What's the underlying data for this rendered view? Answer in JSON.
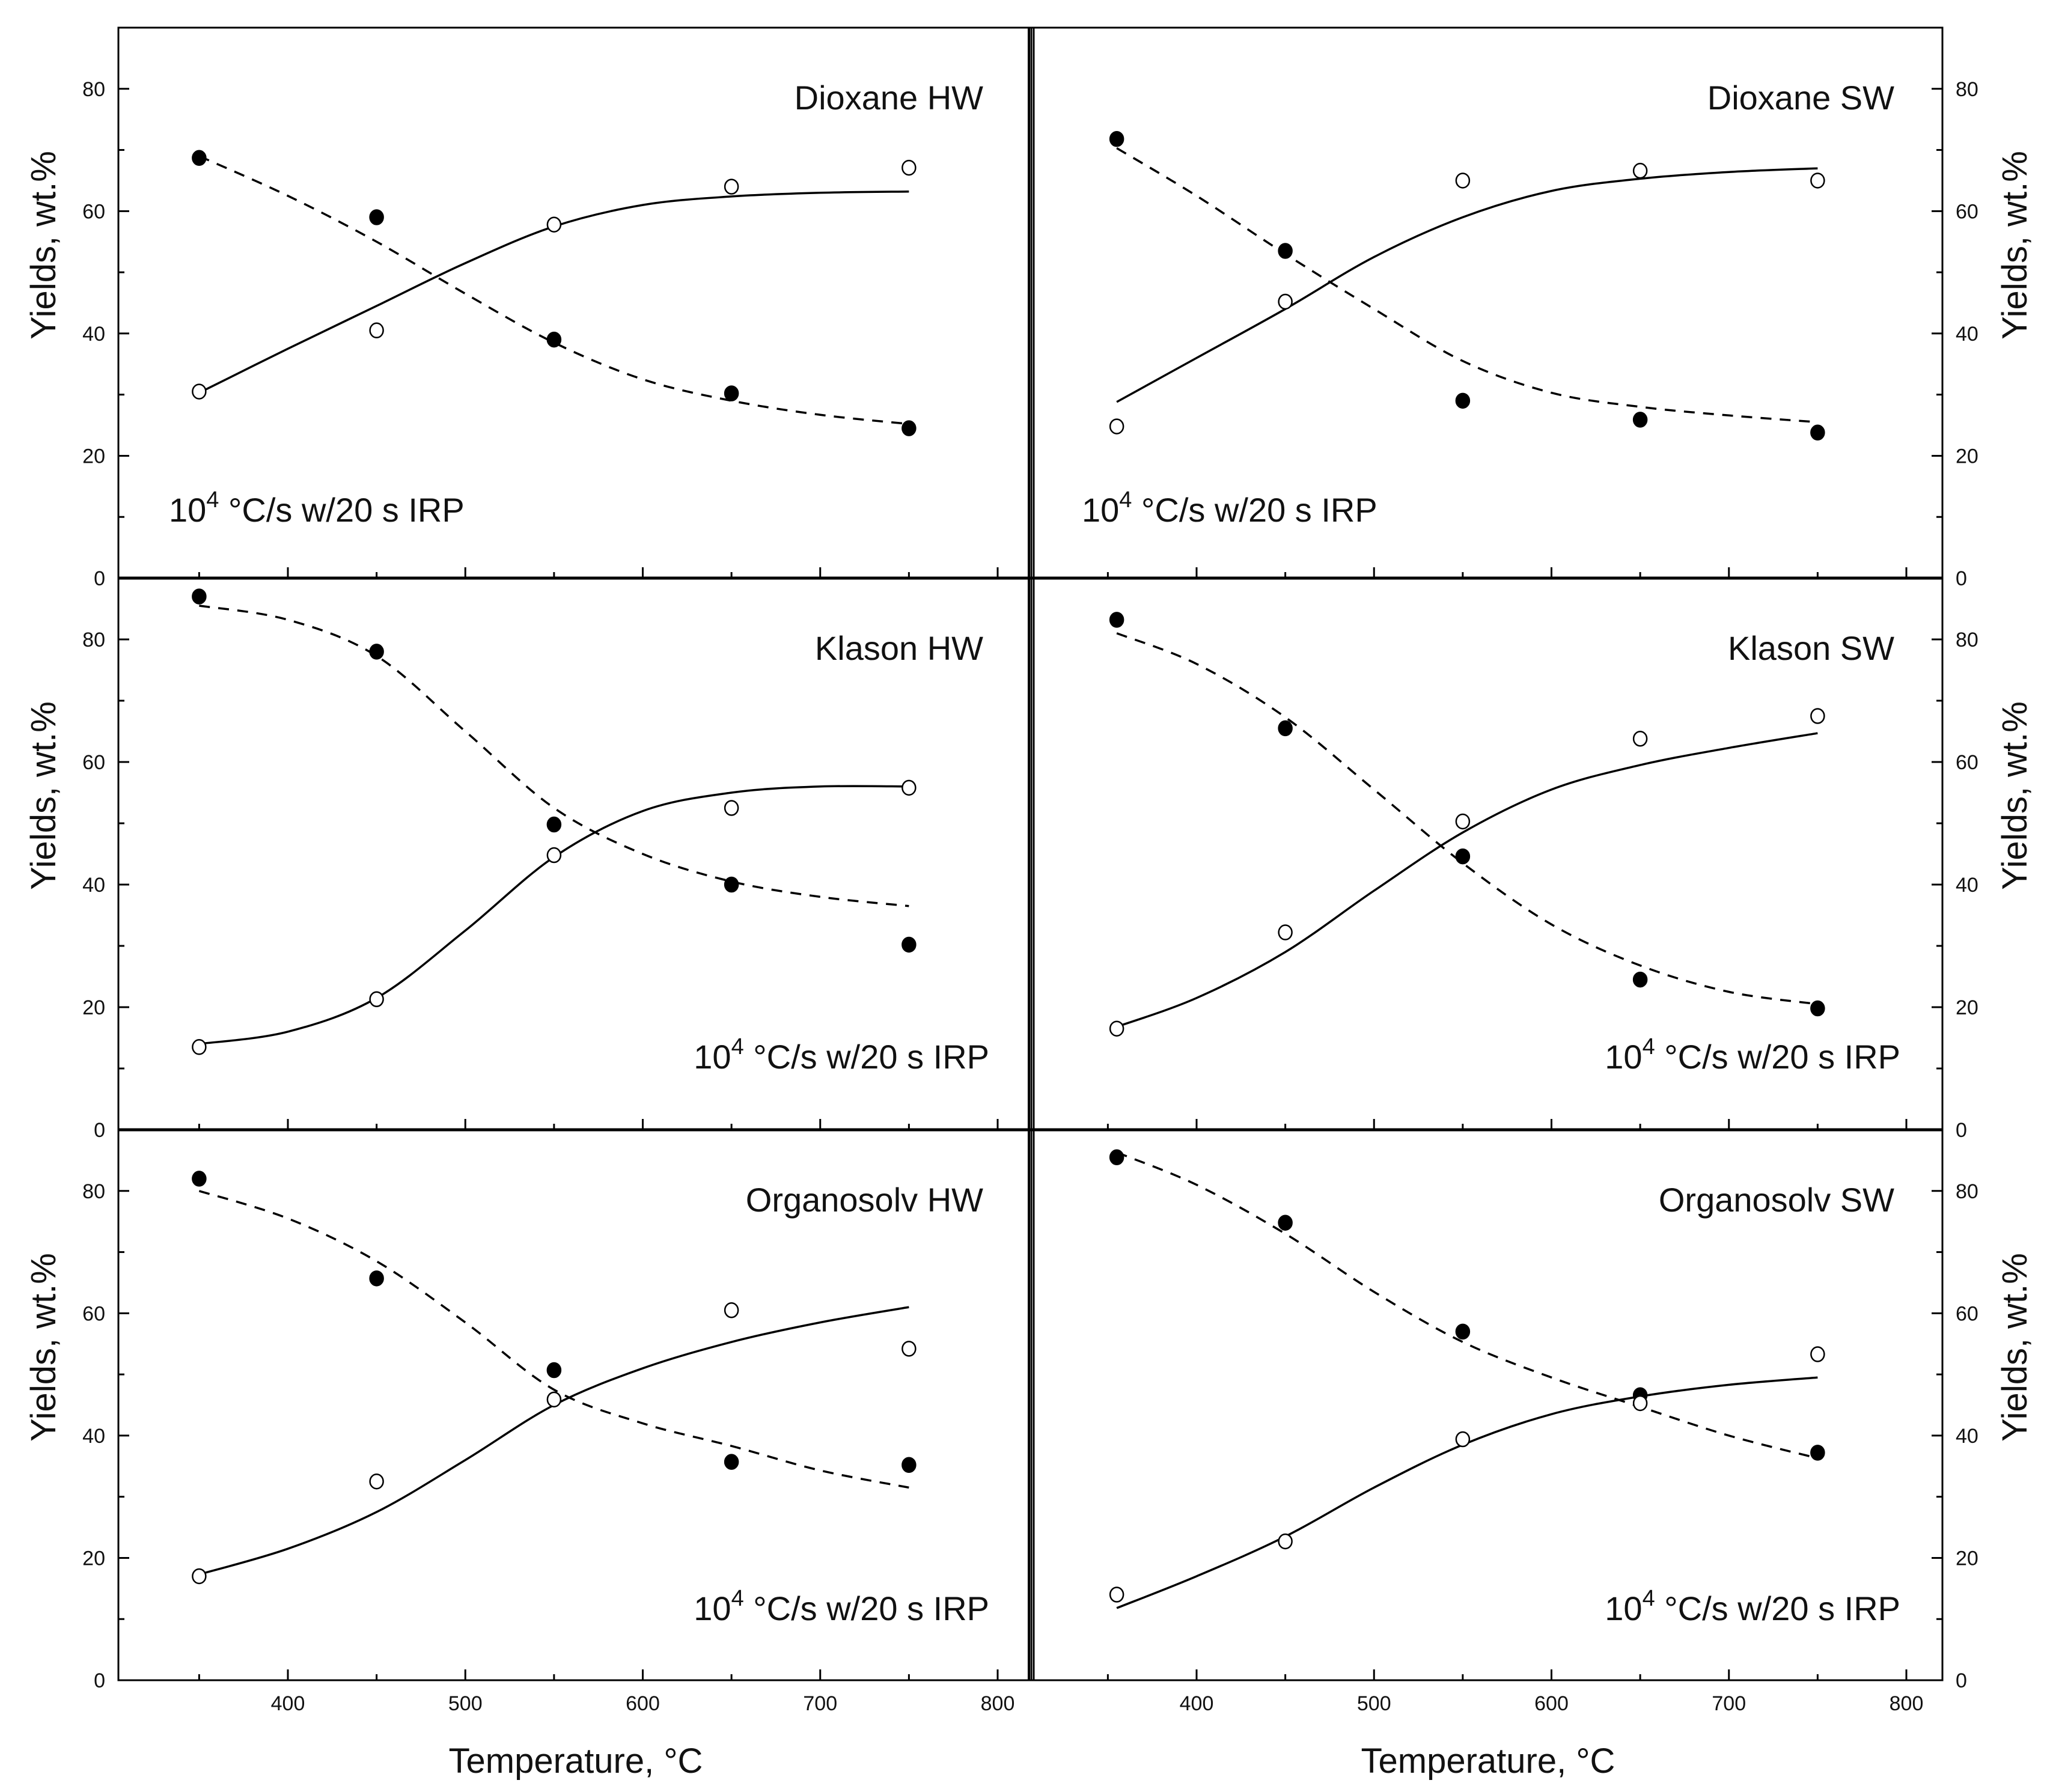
{
  "figure": {
    "y_axis_label": "Yields, wt.%",
    "x_axis_label": "Temperature, °C",
    "condition_base": "10",
    "condition_exp": "4",
    "condition_rest": " °C/s w/20 s IRP"
  },
  "chart_data": [
    {
      "type": "scatter",
      "title": "Dioxane HW",
      "xlabel": "Temperature, °C",
      "ylabel": "Yields, wt.%",
      "xlim": [
        300,
        815
      ],
      "ylim": [
        0,
        90
      ],
      "x_ticks": [
        400,
        500,
        600,
        700,
        800
      ],
      "y_ticks": [
        0,
        20,
        40,
        60,
        80
      ],
      "annotation_position": "bottom-left",
      "series": [
        {
          "name": "filled",
          "marker": "filled-circle",
          "points": [
            [
              350,
              68.7
            ],
            [
              450,
              59.0
            ],
            [
              550,
              39.0
            ],
            [
              650,
              30.2
            ],
            [
              750,
              24.5
            ]
          ],
          "fit": [
            [
              350,
              69
            ],
            [
              400,
              62.5
            ],
            [
              450,
              55
            ],
            [
              500,
              46.5
            ],
            [
              550,
              38.5
            ],
            [
              600,
              32.5
            ],
            [
              650,
              29
            ],
            [
              700,
              26.7
            ],
            [
              750,
              25.2
            ]
          ]
        },
        {
          "name": "open",
          "marker": "open-circle",
          "points": [
            [
              350,
              30.5
            ],
            [
              450,
              40.5
            ],
            [
              550,
              57.8
            ],
            [
              650,
              64.0
            ],
            [
              750,
              67.1
            ]
          ],
          "fit": [
            [
              350,
              30.3
            ],
            [
              400,
              37.5
            ],
            [
              450,
              44.5
            ],
            [
              500,
              51.5
            ],
            [
              550,
              57.5
            ],
            [
              600,
              61
            ],
            [
              650,
              62.4
            ],
            [
              700,
              63
            ],
            [
              750,
              63.2
            ]
          ]
        }
      ]
    },
    {
      "type": "scatter",
      "title": "Dioxane SW",
      "xlabel": "Temperature, °C",
      "ylabel": "Yields, wt.%",
      "xlim": [
        300,
        815
      ],
      "ylim": [
        0,
        90
      ],
      "x_ticks": [
        400,
        500,
        600,
        700,
        800
      ],
      "y_ticks": [
        0,
        20,
        40,
        60,
        80
      ],
      "annotation_position": "bottom-left",
      "series": [
        {
          "name": "filled",
          "marker": "filled-circle",
          "points": [
            [
              355,
              71.8
            ],
            [
              450,
              53.5
            ],
            [
              550,
              29.0
            ],
            [
              650,
              25.9
            ],
            [
              750,
              23.8
            ]
          ],
          "fit": [
            [
              355,
              70.3
            ],
            [
              400,
              62.5
            ],
            [
              450,
              53
            ],
            [
              500,
              44
            ],
            [
              550,
              35.5
            ],
            [
              600,
              30.3
            ],
            [
              650,
              28
            ],
            [
              700,
              26.6
            ],
            [
              750,
              25.5
            ]
          ]
        },
        {
          "name": "open",
          "marker": "open-circle",
          "points": [
            [
              355,
              24.8
            ],
            [
              450,
              45.2
            ],
            [
              550,
              65.0
            ],
            [
              650,
              66.6
            ],
            [
              750,
              65.0
            ]
          ],
          "fit": [
            [
              355,
              28.8
            ],
            [
              400,
              36
            ],
            [
              450,
              44
            ],
            [
              500,
              52.5
            ],
            [
              550,
              59
            ],
            [
              600,
              63.3
            ],
            [
              650,
              65.3
            ],
            [
              700,
              66.4
            ],
            [
              750,
              67
            ]
          ]
        }
      ]
    },
    {
      "type": "scatter",
      "title": "Klason HW",
      "xlabel": "Temperature, °C",
      "ylabel": "Yields, wt.%",
      "xlim": [
        300,
        815
      ],
      "ylim": [
        0,
        90
      ],
      "x_ticks": [
        400,
        500,
        600,
        700,
        800
      ],
      "y_ticks": [
        0,
        20,
        40,
        60,
        80
      ],
      "annotation_position": "bottom-right",
      "series": [
        {
          "name": "filled",
          "marker": "filled-circle",
          "points": [
            [
              350,
              87.0
            ],
            [
              450,
              78.0
            ],
            [
              550,
              49.8
            ],
            [
              650,
              40.0
            ],
            [
              750,
              30.2
            ]
          ],
          "fit": [
            [
              350,
              85.5
            ],
            [
              400,
              83.2
            ],
            [
              450,
              77.3
            ],
            [
              500,
              65
            ],
            [
              550,
              52.5
            ],
            [
              600,
              45
            ],
            [
              650,
              40.5
            ],
            [
              700,
              38
            ],
            [
              750,
              36.5
            ]
          ]
        },
        {
          "name": "open",
          "marker": "open-circle",
          "points": [
            [
              350,
              13.5
            ],
            [
              450,
              21.3
            ],
            [
              550,
              44.8
            ],
            [
              650,
              52.5
            ],
            [
              750,
              55.8
            ]
          ],
          "fit": [
            [
              350,
              14
            ],
            [
              400,
              16
            ],
            [
              450,
              21.5
            ],
            [
              500,
              32.5
            ],
            [
              550,
              44.5
            ],
            [
              600,
              52
            ],
            [
              650,
              55
            ],
            [
              700,
              56
            ],
            [
              750,
              56
            ]
          ]
        }
      ]
    },
    {
      "type": "scatter",
      "title": "Klason SW",
      "xlabel": "Temperature, °C",
      "ylabel": "Yields, wt.%",
      "xlim": [
        300,
        815
      ],
      "ylim": [
        0,
        90
      ],
      "x_ticks": [
        400,
        500,
        600,
        700,
        800
      ],
      "y_ticks": [
        0,
        20,
        40,
        60,
        80
      ],
      "annotation_position": "bottom-right",
      "series": [
        {
          "name": "filled",
          "marker": "filled-circle",
          "points": [
            [
              355,
              83.2
            ],
            [
              450,
              65.5
            ],
            [
              550,
              44.6
            ],
            [
              650,
              24.5
            ],
            [
              750,
              19.8
            ]
          ],
          "fit": [
            [
              355,
              81
            ],
            [
              400,
              76
            ],
            [
              450,
              67.3
            ],
            [
              500,
              55.5
            ],
            [
              550,
              43.5
            ],
            [
              600,
              33.5
            ],
            [
              650,
              26.8
            ],
            [
              700,
              22.5
            ],
            [
              750,
              20.5
            ]
          ]
        },
        {
          "name": "open",
          "marker": "open-circle",
          "points": [
            [
              355,
              16.5
            ],
            [
              450,
              32.2
            ],
            [
              550,
              50.3
            ],
            [
              650,
              63.8
            ],
            [
              750,
              67.5
            ]
          ],
          "fit": [
            [
              355,
              16.8
            ],
            [
              400,
              21.5
            ],
            [
              450,
              29
            ],
            [
              500,
              39
            ],
            [
              550,
              48.5
            ],
            [
              600,
              55.5
            ],
            [
              650,
              59.5
            ],
            [
              700,
              62.3
            ],
            [
              750,
              64.7
            ]
          ]
        }
      ]
    },
    {
      "type": "scatter",
      "title": "Organosolv HW",
      "xlabel": "Temperature, °C",
      "ylabel": "Yields, wt.%",
      "xlim": [
        300,
        815
      ],
      "ylim": [
        0,
        90
      ],
      "x_ticks": [
        400,
        500,
        600,
        700,
        800
      ],
      "y_ticks": [
        0,
        20,
        40,
        60,
        80
      ],
      "annotation_position": "bottom-right",
      "series": [
        {
          "name": "filled",
          "marker": "filled-circle",
          "points": [
            [
              350,
              82.0
            ],
            [
              450,
              65.7
            ],
            [
              550,
              50.7
            ],
            [
              650,
              35.7
            ],
            [
              750,
              35.2
            ]
          ],
          "fit": [
            [
              350,
              80
            ],
            [
              400,
              75.5
            ],
            [
              450,
              68.5
            ],
            [
              500,
              58.5
            ],
            [
              550,
              47.5
            ],
            [
              600,
              42
            ],
            [
              650,
              38.3
            ],
            [
              700,
              34.3
            ],
            [
              750,
              31.5
            ]
          ]
        },
        {
          "name": "open",
          "marker": "open-circle",
          "points": [
            [
              350,
              17.0
            ],
            [
              450,
              32.5
            ],
            [
              550,
              45.9
            ],
            [
              650,
              60.5
            ],
            [
              750,
              54.2
            ]
          ],
          "fit": [
            [
              350,
              17.3
            ],
            [
              400,
              21.5
            ],
            [
              450,
              27.5
            ],
            [
              500,
              36
            ],
            [
              550,
              45
            ],
            [
              600,
              51
            ],
            [
              650,
              55.3
            ],
            [
              700,
              58.5
            ],
            [
              750,
              61
            ]
          ]
        }
      ]
    },
    {
      "type": "scatter",
      "title": "Organosolv SW",
      "xlabel": "Temperature, °C",
      "ylabel": "Yields, wt.%",
      "xlim": [
        300,
        815
      ],
      "ylim": [
        0,
        90
      ],
      "x_ticks": [
        400,
        500,
        600,
        700,
        800
      ],
      "y_ticks": [
        0,
        20,
        40,
        60,
        80
      ],
      "annotation_position": "bottom-right",
      "series": [
        {
          "name": "filled",
          "marker": "filled-circle",
          "points": [
            [
              355,
              85.5
            ],
            [
              450,
              74.8
            ],
            [
              550,
              57.0
            ],
            [
              650,
              46.6
            ],
            [
              750,
              37.2
            ]
          ],
          "fit": [
            [
              355,
              86.3
            ],
            [
              400,
              81
            ],
            [
              450,
              73
            ],
            [
              500,
              63.5
            ],
            [
              550,
              55.3
            ],
            [
              600,
              49.5
            ],
            [
              650,
              44.7
            ],
            [
              700,
              40
            ],
            [
              750,
              36.3
            ]
          ]
        },
        {
          "name": "open",
          "marker": "open-circle",
          "points": [
            [
              355,
              14.0
            ],
            [
              450,
              22.7
            ],
            [
              550,
              39.4
            ],
            [
              650,
              45.3
            ],
            [
              750,
              53.3
            ]
          ],
          "fit": [
            [
              355,
              11.8
            ],
            [
              400,
              17
            ],
            [
              450,
              23.5
            ],
            [
              500,
              31.5
            ],
            [
              550,
              38.5
            ],
            [
              600,
              43.5
            ],
            [
              650,
              46.4
            ],
            [
              700,
              48.3
            ],
            [
              750,
              49.5
            ]
          ]
        }
      ]
    }
  ]
}
